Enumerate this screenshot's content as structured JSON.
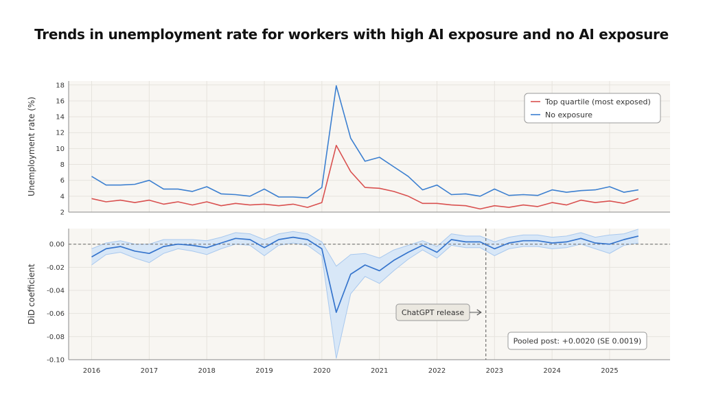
{
  "title": "Trends in unemployment rate for workers with high AI exposure and no AI exposure",
  "colors": {
    "background": "#ffffff",
    "panel": "#f8f6f2",
    "grid": "#e6e3dd",
    "top_quartile": "#d9504f",
    "no_exposure": "#3b7fd0",
    "did_line": "#3574cc",
    "did_band": "#d8e7f7",
    "did_band_edge": "#a8c8ee",
    "box_fill": "#ebe8e0",
    "box_stroke": "#999999"
  },
  "chart_data": [
    {
      "type": "line",
      "title": "",
      "xlabel": "",
      "ylabel": "Unemployment rate (%)",
      "ylim": [
        2,
        18.5
      ],
      "yticks": [
        2,
        4,
        6,
        8,
        10,
        12,
        14,
        16,
        18
      ],
      "x": [
        2016.0,
        2016.25,
        2016.5,
        2016.75,
        2017.0,
        2017.25,
        2017.5,
        2017.75,
        2018.0,
        2018.25,
        2018.5,
        2018.75,
        2019.0,
        2019.25,
        2019.5,
        2019.75,
        2020.0,
        2020.25,
        2020.5,
        2020.75,
        2021.0,
        2021.25,
        2021.5,
        2021.75,
        2022.0,
        2022.25,
        2022.5,
        2022.75,
        2023.0,
        2023.25,
        2023.5,
        2023.75,
        2024.0,
        2024.25,
        2024.5,
        2024.75,
        2025.0,
        2025.25,
        2025.5
      ],
      "series": [
        {
          "name": "Top quartile (most exposed)",
          "values": [
            3.7,
            3.3,
            3.5,
            3.2,
            3.5,
            3.0,
            3.3,
            2.9,
            3.3,
            2.8,
            3.1,
            2.9,
            3.0,
            2.8,
            3.0,
            2.6,
            3.2,
            10.4,
            7.1,
            5.1,
            5.0,
            4.6,
            4.0,
            3.1,
            3.1,
            2.9,
            2.8,
            2.4,
            2.8,
            2.6,
            2.9,
            2.7,
            3.2,
            2.9,
            3.5,
            3.2,
            3.4,
            3.1,
            3.7
          ]
        },
        {
          "name": "No exposure",
          "values": [
            6.5,
            5.4,
            5.4,
            5.5,
            6.0,
            4.9,
            4.9,
            4.6,
            5.2,
            4.3,
            4.2,
            4.0,
            4.9,
            3.9,
            3.9,
            3.8,
            5.1,
            17.9,
            11.3,
            8.4,
            8.9,
            7.7,
            6.5,
            4.8,
            5.4,
            4.2,
            4.3,
            4.0,
            4.9,
            4.1,
            4.2,
            4.1,
            4.8,
            4.5,
            4.7,
            4.8,
            5.2,
            4.5,
            4.8
          ]
        }
      ],
      "legend": [
        "Top quartile (most exposed)",
        "No exposure"
      ],
      "legend_position": "top-right",
      "grid": true
    },
    {
      "type": "line",
      "title": "",
      "xlabel": "",
      "ylabel": "DiD coefficient",
      "ylim": [
        -0.1,
        0.0135
      ],
      "yticks": [
        0.0,
        -0.02,
        -0.04,
        -0.06,
        -0.08,
        -0.1
      ],
      "ytick_labels": [
        "0.00",
        "-0.02",
        "-0.04",
        "-0.06",
        "-0.08",
        "-0.10"
      ],
      "x": [
        2016.0,
        2016.25,
        2016.5,
        2016.75,
        2017.0,
        2017.25,
        2017.5,
        2017.75,
        2018.0,
        2018.25,
        2018.5,
        2018.75,
        2019.0,
        2019.25,
        2019.5,
        2019.75,
        2020.0,
        2020.25,
        2020.5,
        2020.75,
        2021.0,
        2021.25,
        2021.5,
        2021.75,
        2022.0,
        2022.25,
        2022.5,
        2022.75,
        2023.0,
        2023.25,
        2023.5,
        2023.75,
        2024.0,
        2024.25,
        2024.5,
        2024.75,
        2025.0,
        2025.25,
        2025.5
      ],
      "series": [
        {
          "name": "DiD coefficient",
          "values": [
            -0.011,
            -0.004,
            -0.002,
            -0.006,
            -0.008,
            -0.002,
            0.0,
            -0.001,
            -0.003,
            0.001,
            0.005,
            0.004,
            -0.003,
            0.004,
            0.006,
            0.004,
            -0.004,
            -0.059,
            -0.026,
            -0.018,
            -0.023,
            -0.014,
            -0.007,
            -0.001,
            -0.007,
            0.004,
            0.002,
            0.002,
            -0.004,
            0.001,
            0.003,
            0.003,
            0.001,
            0.002,
            0.005,
            0.001,
            0.0,
            0.004,
            0.007
          ],
          "ci_lower": [
            -0.018,
            -0.009,
            -0.007,
            -0.012,
            -0.016,
            -0.008,
            -0.004,
            -0.006,
            -0.009,
            -0.004,
            0.0,
            -0.001,
            -0.01,
            -0.001,
            0.001,
            -0.001,
            -0.01,
            -0.099,
            -0.043,
            -0.028,
            -0.034,
            -0.023,
            -0.013,
            -0.005,
            -0.012,
            -0.001,
            -0.003,
            -0.003,
            -0.01,
            -0.004,
            -0.002,
            -0.002,
            -0.004,
            -0.003,
            0.0,
            -0.004,
            -0.008,
            -0.001,
            0.001
          ],
          "ci_upper": [
            -0.004,
            0.001,
            0.003,
            0.0,
            0.0,
            0.004,
            0.004,
            0.004,
            0.003,
            0.006,
            0.01,
            0.009,
            0.004,
            0.009,
            0.011,
            0.009,
            0.002,
            -0.019,
            -0.009,
            -0.008,
            -0.012,
            -0.005,
            -0.001,
            0.003,
            -0.002,
            0.009,
            0.007,
            0.007,
            0.002,
            0.006,
            0.008,
            0.008,
            0.006,
            0.007,
            0.01,
            0.006,
            0.008,
            0.009,
            0.013
          ]
        }
      ],
      "reference_line": 0.0,
      "event_line": {
        "x": 2022.85,
        "label": "ChatGPT release"
      },
      "annotation": "Pooled post: +0.0020 (SE 0.0019)",
      "grid": true
    }
  ],
  "x_axis": {
    "ticks": [
      2016,
      2017,
      2018,
      2019,
      2020,
      2021,
      2022,
      2023,
      2024,
      2025
    ],
    "labels": [
      "2016",
      "2017",
      "2018",
      "2019",
      "2020",
      "2021",
      "2022",
      "2023",
      "2024",
      "2025"
    ],
    "xlim": [
      2015.6,
      2026.05
    ]
  }
}
